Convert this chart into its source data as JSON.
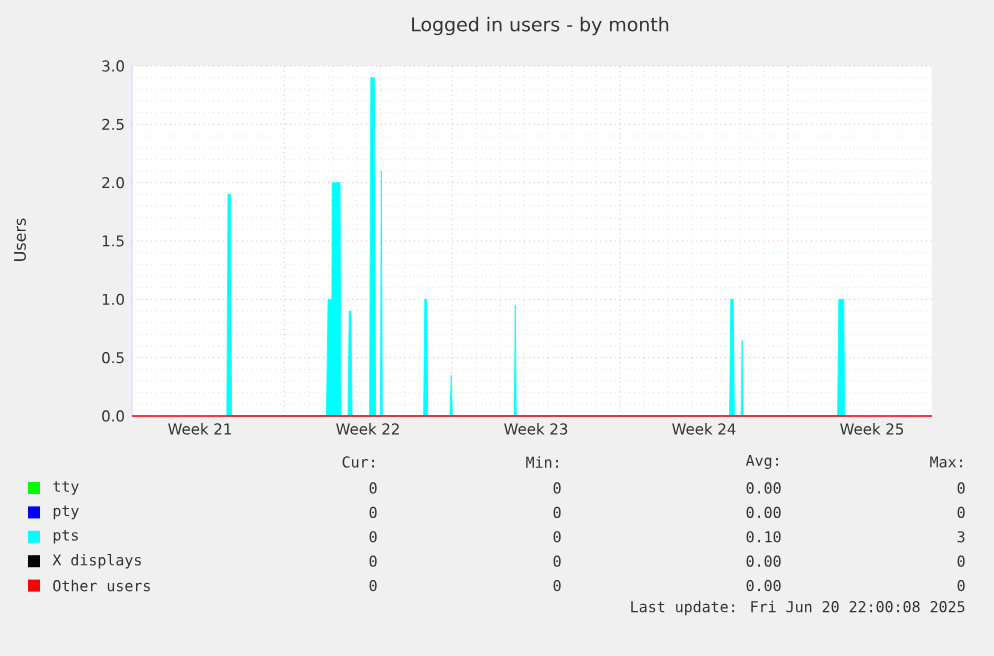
{
  "chart_data": {
    "type": "area",
    "title": "Logged in users - by month",
    "ylabel": "Users",
    "xlim": [
      "2025-05-19T16:00",
      "2025-06-22T00:00"
    ],
    "ylim": [
      0,
      3.0
    ],
    "xticks": [
      {
        "value": "2025-05-26",
        "label": null
      },
      {
        "value": "2025-06-02",
        "label": null
      },
      {
        "value": "2025-06-09",
        "label": null
      },
      {
        "value": "2025-06-16",
        "label": null
      },
      {
        "value": "2025-05-22T12:00",
        "label": "Week 21"
      },
      {
        "value": "2025-05-29T12:00",
        "label": "Week 22"
      },
      {
        "value": "2025-06-05T12:00",
        "label": "Week 23"
      },
      {
        "value": "2025-06-12T12:00",
        "label": "Week 24"
      },
      {
        "value": "2025-06-19T12:00",
        "label": "Week 25"
      }
    ],
    "yticks": [
      {
        "value": 0,
        "label": "0.0"
      },
      {
        "value": 0.5,
        "label": "0.5"
      },
      {
        "value": 1.0,
        "label": "1.0"
      },
      {
        "value": 1.5,
        "label": "1.5"
      },
      {
        "value": 2.0,
        "label": "2.0"
      },
      {
        "value": 2.5,
        "label": "2.5"
      },
      {
        "value": 3.0,
        "label": "3.0"
      }
    ],
    "grid": true,
    "legend": "bottom",
    "marker": "none",
    "series": [
      {
        "name": "tty",
        "type": "line",
        "color": "#00ff00"
      },
      {
        "name": "pty",
        "type": "line",
        "color": "#0000ff"
      },
      {
        "name": "pts",
        "color": "#00ffff",
        "x": [
          "2025-05-23T14:48",
          "2025-05-23T16:00",
          "2025-05-23T18:24",
          "2025-05-23T19:36",
          "2025-05-27T18:24",
          "2025-05-27T20:05",
          "2025-05-27T23:55",
          "2025-05-28T00:10",
          "2025-05-28T08:05",
          "2025-05-28T08:48",
          "2025-05-28T16:00",
          "2025-05-28T17:12",
          "2025-05-28T18:53",
          "2025-05-28T20:05",
          "2025-05-29T13:36",
          "2025-05-29T14:48",
          "2025-05-29T18:24",
          "2025-05-29T19:36",
          "2025-05-30T00:24",
          "2025-05-30T01:22",
          "2025-05-30T02:19",
          "2025-05-31T19:36",
          "2025-05-31T20:48",
          "2025-05-31T22:43",
          "2025-05-31T23:41",
          "2025-06-01T22:00",
          "2025-06-01T23:12",
          "2025-06-02T00:24",
          "2025-06-04T14:19",
          "2025-06-04T15:17",
          "2025-06-04T16:14",
          "2025-06-13T13:36",
          "2025-06-13T14:48",
          "2025-06-13T17:12",
          "2025-06-13T18:24",
          "2025-06-14T01:07",
          "2025-06-14T02:05",
          "2025-06-14T03:02",
          "2025-06-18T01:36",
          "2025-06-18T02:48",
          "2025-06-18T07:36",
          "2025-06-18T08:48"
        ],
        "values": [
          0,
          1.9,
          1.9,
          0,
          0,
          1.0,
          1.0,
          2.0,
          2.0,
          0,
          0,
          0.9,
          0.9,
          0,
          0,
          2.9,
          2.9,
          0,
          0,
          2.1,
          0,
          0,
          1.0,
          1.0,
          0,
          0,
          0.35,
          0,
          0,
          0.95,
          0,
          0,
          1.0,
          1.0,
          0,
          0,
          0.65,
          0,
          0,
          1.0,
          1.0,
          0
        ]
      },
      {
        "name": "X displays",
        "type": "line",
        "color": "#000000"
      },
      {
        "name": "Other users",
        "type": "line",
        "color": "#ff0000",
        "x": [
          "2025-05-19T16:00",
          "2025-06-22T00:00"
        ],
        "values": [
          0,
          0
        ]
      }
    ],
    "annotations": [
      "Cur:",
      "Min:",
      "Avg:",
      "Max:",
      "0",
      "0",
      "0.00",
      "0",
      "0",
      "0",
      "0.00",
      "0",
      "0",
      "0",
      "0.10",
      "3",
      "0",
      "0",
      "0.00",
      "0",
      "0",
      "0",
      "0.00",
      "0",
      "Last update: Fri Jun 20 22:00:08 2025"
    ]
  }
}
